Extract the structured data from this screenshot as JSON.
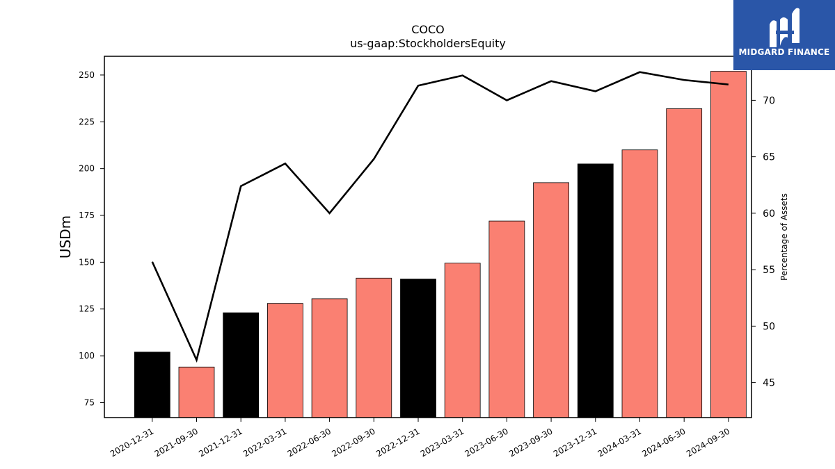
{
  "brand": {
    "name": "MIDGARD FINANCE",
    "icon": "midgard-m-logo-icon",
    "bg_color": "#2a56a8"
  },
  "chart_data": {
    "type": "bar",
    "title": "COCO",
    "subtitle": "us-gaap:StockholdersEquity",
    "ylabel": "USDm",
    "y2label": "Percentage of Assets",
    "categories": [
      "2020-12-31",
      "2021-09-30",
      "2021-12-31",
      "2022-03-31",
      "2022-06-30",
      "2022-09-30",
      "2022-12-31",
      "2023-03-31",
      "2023-06-30",
      "2023-09-30",
      "2023-12-31",
      "2024-03-31",
      "2024-06-30",
      "2024-09-30"
    ],
    "values": [
      102,
      94,
      123,
      128,
      130.5,
      141.5,
      141,
      149.5,
      172,
      192.5,
      202.5,
      210,
      232,
      252
    ],
    "bar_colors": [
      "#000000",
      "#fa8072",
      "#000000",
      "#fa8072",
      "#fa8072",
      "#fa8072",
      "#000000",
      "#fa8072",
      "#fa8072",
      "#fa8072",
      "#000000",
      "#fa8072",
      "#fa8072",
      "#fa8072"
    ],
    "line_series": {
      "values": [
        55.7,
        47.0,
        62.4,
        64.4,
        60.0,
        64.8,
        71.3,
        72.2,
        70.0,
        71.7,
        70.8,
        72.5,
        71.8,
        71.4
      ],
      "color": "#000000",
      "axis": "right"
    },
    "ylim": [
      67,
      260
    ],
    "y_ticks": [
      75,
      100,
      125,
      150,
      175,
      200,
      225,
      250
    ],
    "y2lim": [
      41.9,
      73.9
    ],
    "y2_ticks": [
      45,
      50,
      55,
      60,
      65,
      70
    ],
    "grid": false,
    "legend": "none"
  }
}
